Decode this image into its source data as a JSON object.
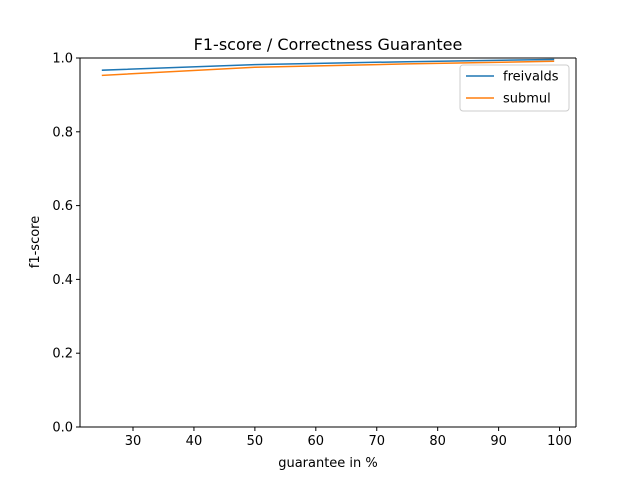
{
  "chart_data": {
    "type": "line",
    "title": "F1-score / Correctness Guarantee",
    "xlabel": "guarantee in %",
    "ylabel": "f1-score",
    "xlim": [
      21.3,
      102.7
    ],
    "ylim": [
      0.0,
      1.0
    ],
    "xticks": [
      30,
      40,
      50,
      60,
      70,
      80,
      90,
      100
    ],
    "yticks": [
      0.0,
      0.2,
      0.4,
      0.6,
      0.8,
      1.0
    ],
    "grid": false,
    "legend_position": "upper right",
    "series": [
      {
        "name": "freivalds",
        "color": "#1f77b4",
        "x": [
          25,
          50,
          75,
          99
        ],
        "y": [
          0.967,
          0.982,
          0.99,
          0.996
        ]
      },
      {
        "name": "submul",
        "color": "#ff7f0e",
        "x": [
          25,
          50,
          75,
          99
        ],
        "y": [
          0.953,
          0.975,
          0.984,
          0.991
        ]
      }
    ]
  }
}
